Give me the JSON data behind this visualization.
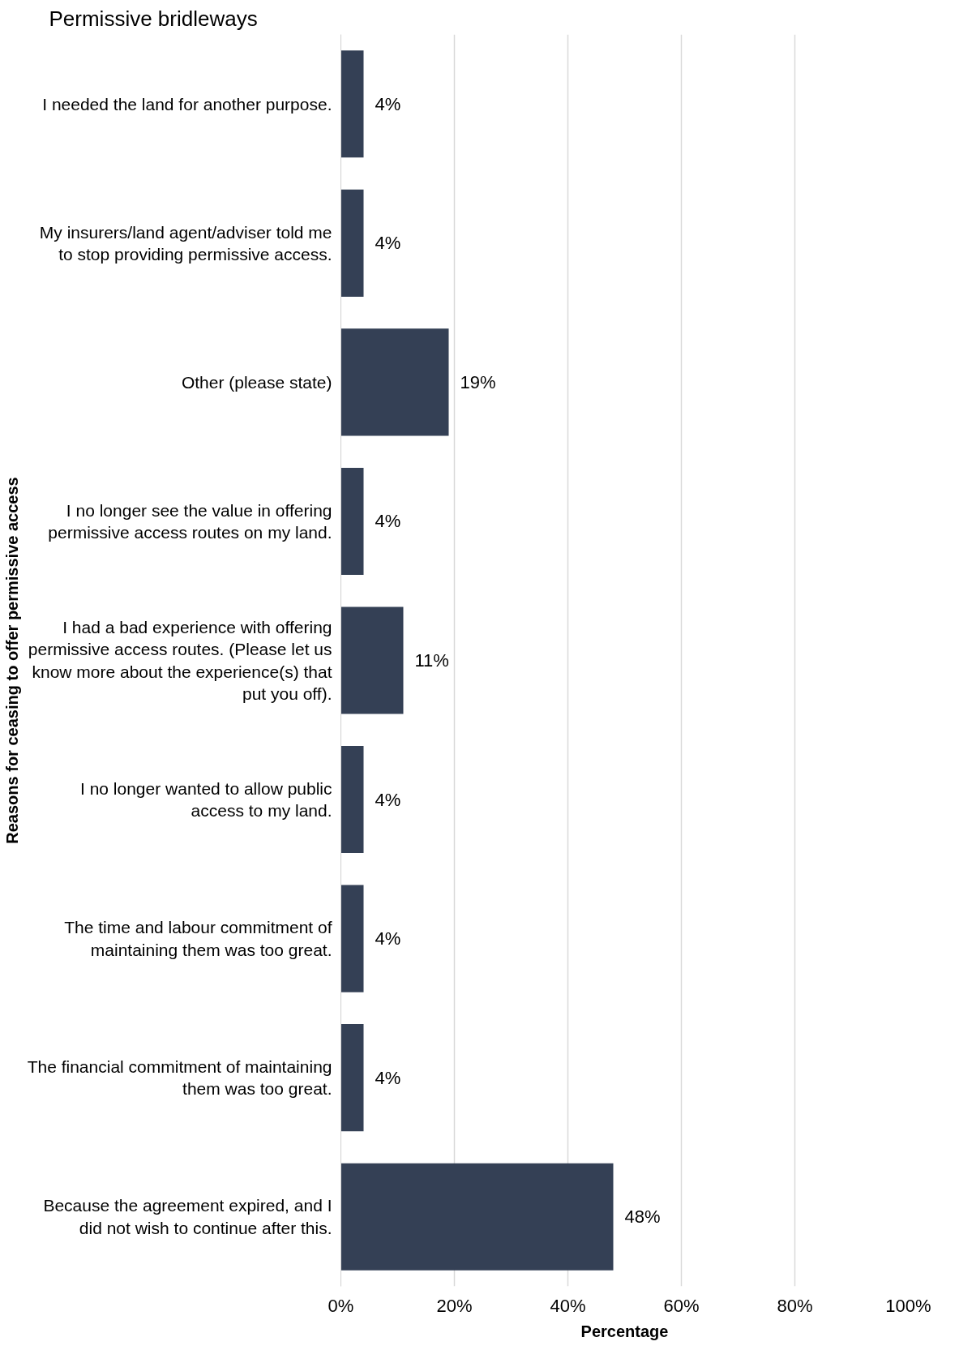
{
  "chart_data": {
    "type": "bar",
    "orientation": "horizontal",
    "title": "Permissive bridleways",
    "xlabel": "Percentage",
    "ylabel": "Reasons for ceasing to offer permissive access",
    "categories": [
      "I needed the land for another purpose.",
      "My insurers/land agent/adviser told me\nto stop providing permissive access.",
      "Other (please state)",
      "I no longer see the value in offering\npermissive access routes on my land.",
      "I had a bad experience with offering\npermissive access routes. (Please let us\nknow more about the experience(s) that\nput you off).",
      "I no longer wanted to allow public\naccess to my land.",
      "The time and labour commitment of\nmaintaining them was too great.",
      "The financial commitment of maintaining\nthem was too great.",
      "Because the agreement expired, and I\ndid not wish to continue after this."
    ],
    "values": [
      4,
      4,
      19,
      4,
      11,
      4,
      4,
      4,
      48
    ],
    "color": "#344055",
    "data_labels": true,
    "value_labels": [
      "4%",
      "4%",
      "19%",
      "4%",
      "11%",
      "4%",
      "4%",
      "4%",
      "48%"
    ],
    "xlim": [
      0,
      100
    ],
    "xticks": [
      {
        "value": 0,
        "label": "0%"
      },
      {
        "value": 20,
        "label": "20%"
      },
      {
        "value": 40,
        "label": "40%"
      },
      {
        "value": 60,
        "label": "60%"
      },
      {
        "value": 80,
        "label": "80%"
      },
      {
        "value": 100,
        "label": "100%"
      }
    ],
    "grid": "x"
  }
}
